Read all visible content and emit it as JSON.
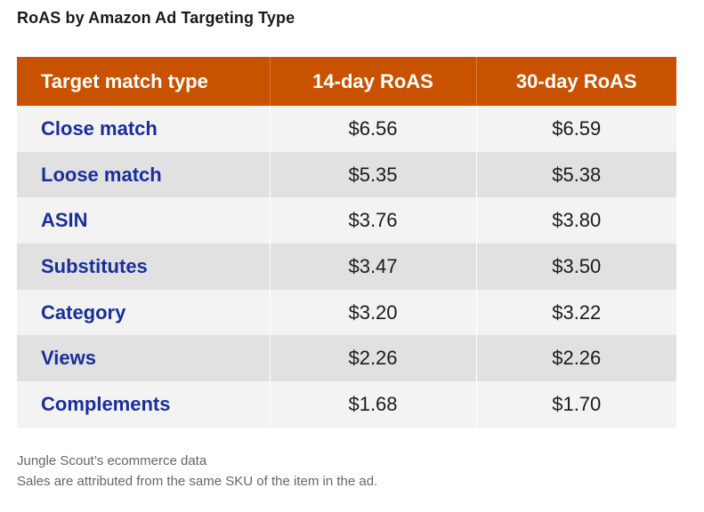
{
  "title": "RoAS by Amazon Ad Targeting Type",
  "table": {
    "headers": [
      "Target match type",
      "14-day RoAS",
      "30-day RoAS"
    ],
    "rows": [
      [
        "Close match",
        "$6.56",
        "$6.59"
      ],
      [
        "Loose match",
        "$5.35",
        "$5.38"
      ],
      [
        "ASIN",
        "$3.76",
        "$3.80"
      ],
      [
        "Substitutes",
        "$3.47",
        "$3.50"
      ],
      [
        "Category",
        "$3.20",
        "$3.22"
      ],
      [
        "Views",
        "$2.26",
        "$2.26"
      ],
      [
        "Complements",
        "$1.68",
        "$1.70"
      ]
    ]
  },
  "notes": {
    "source": "Jungle Scout’s ecommerce data",
    "attribution": "Sales are attributed from the same SKU of the item in the ad."
  },
  "colors": {
    "header_bg": "#c95200",
    "label_text": "#1a2e9c",
    "row_light": "#f3f3f3",
    "row_dark": "#e1e1e1"
  }
}
